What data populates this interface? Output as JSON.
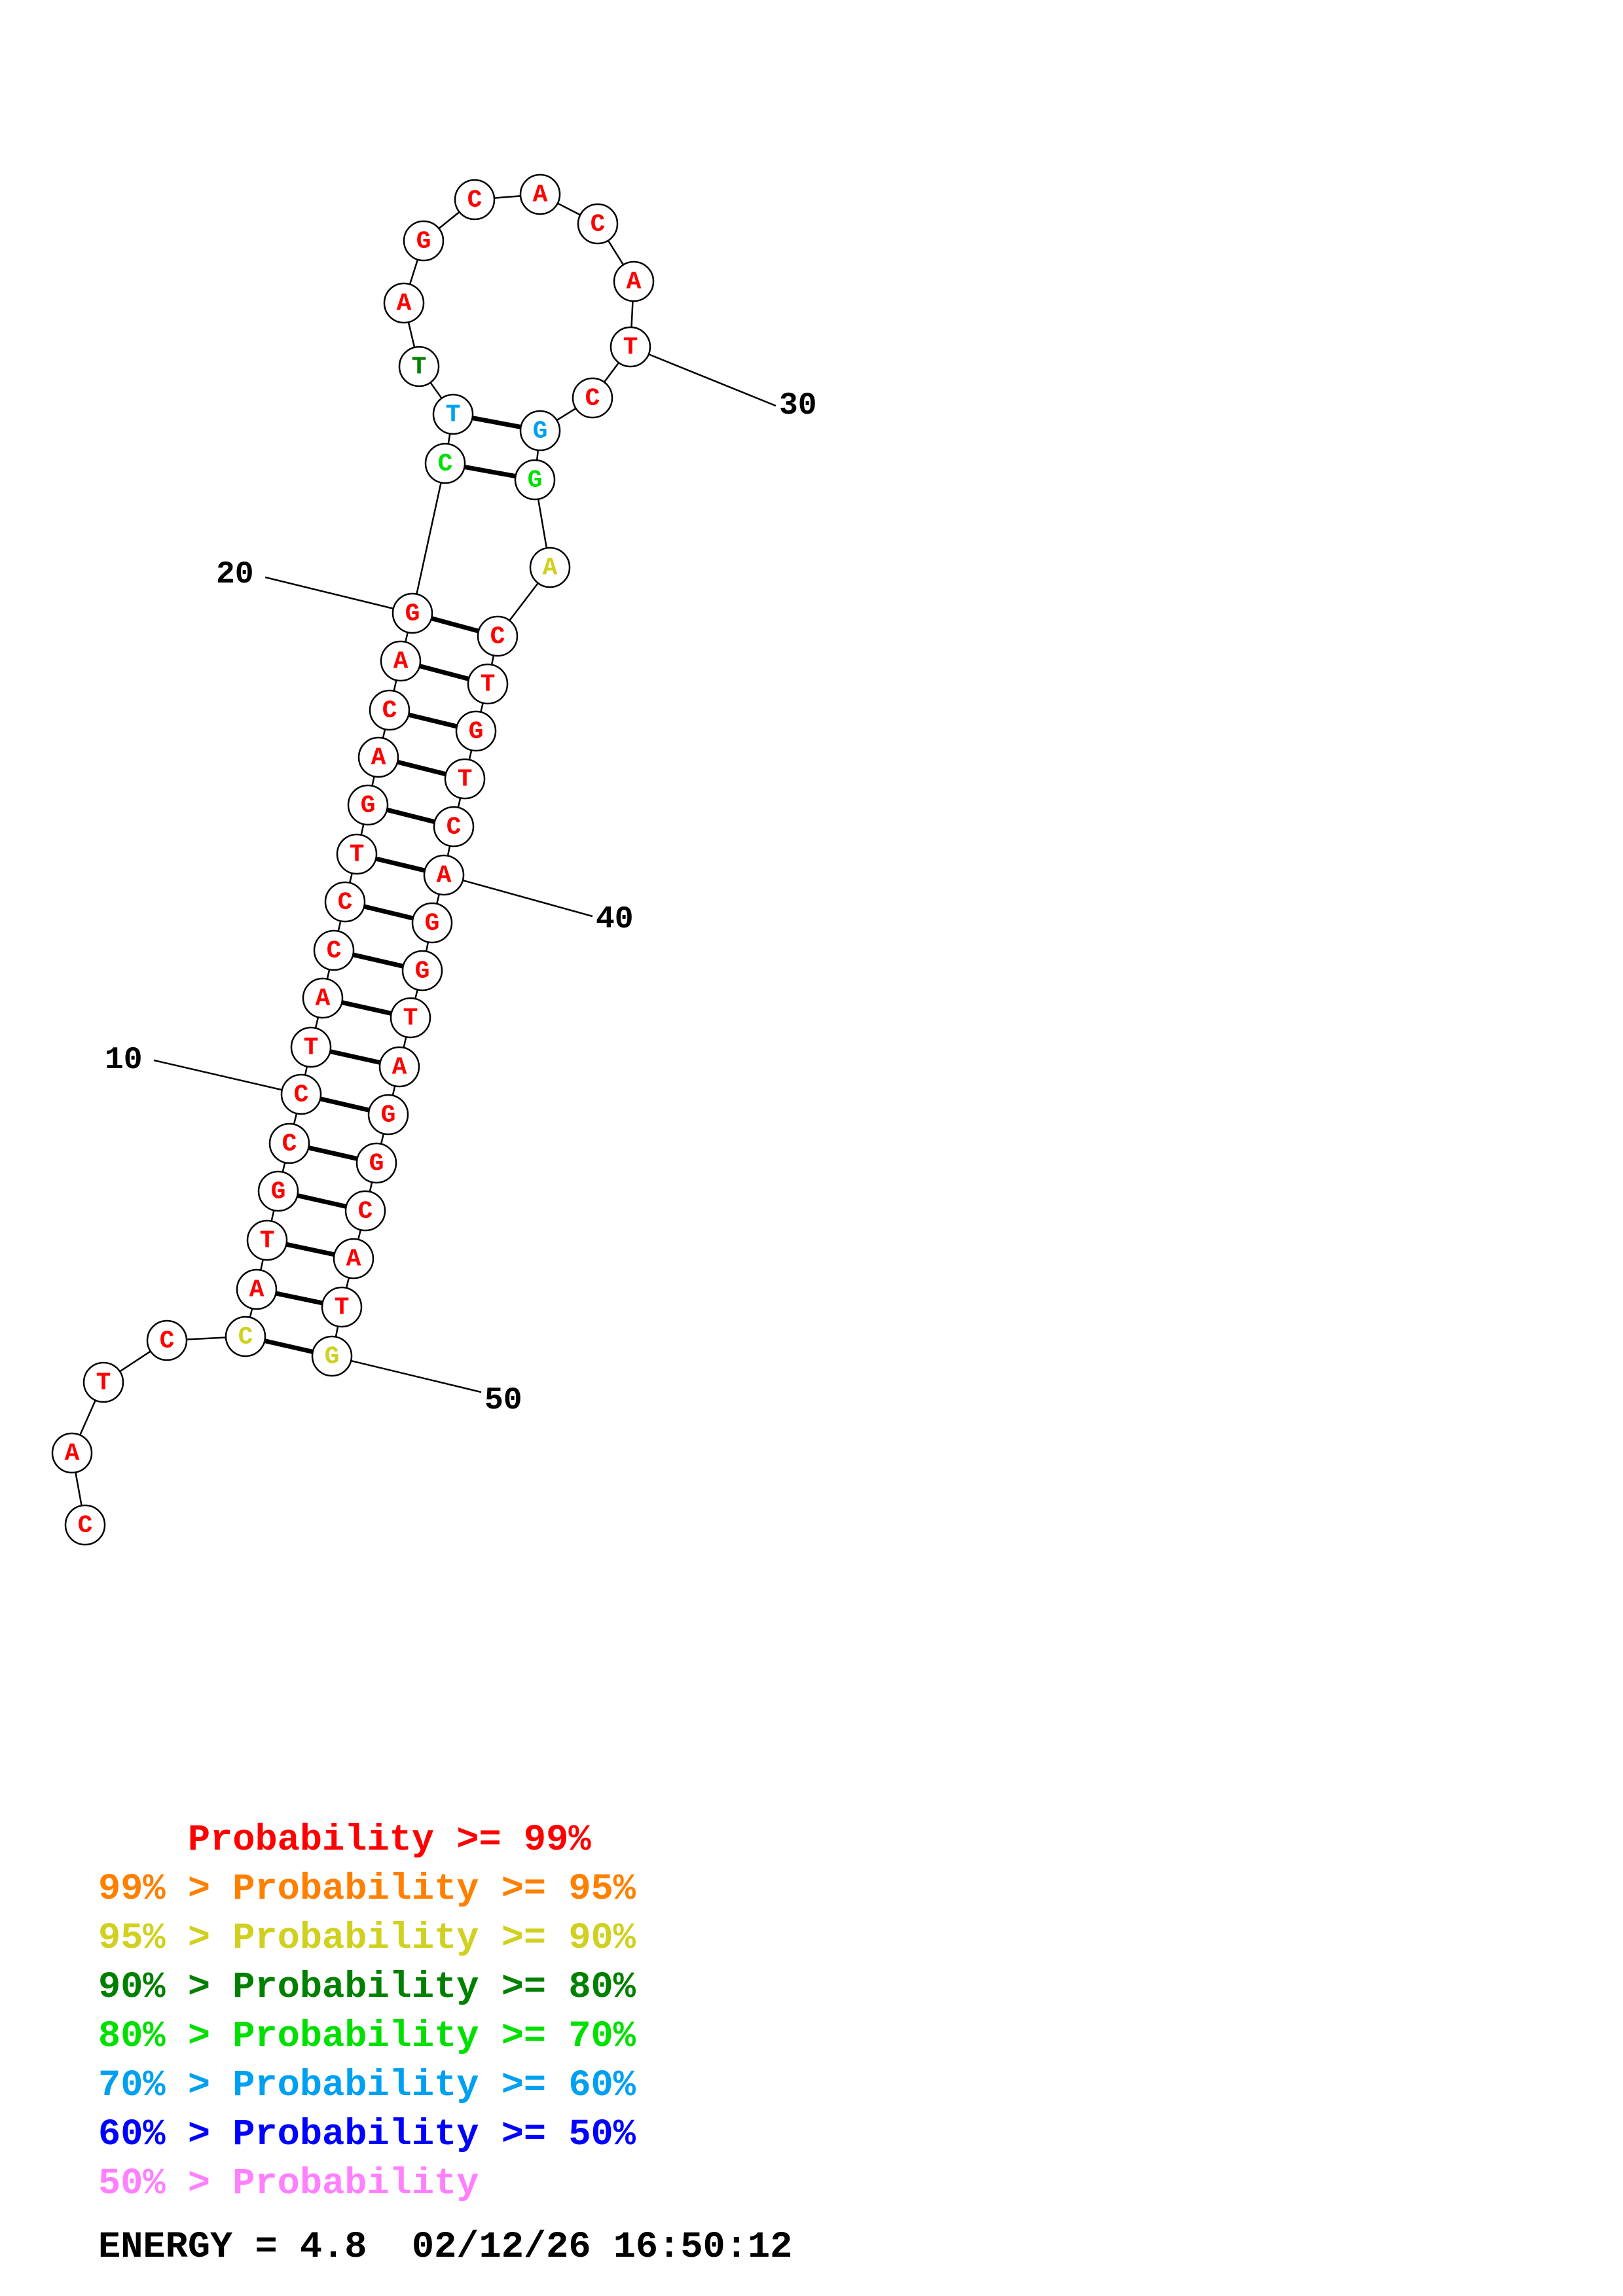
{
  "colors": {
    "p99": "#ff0000",
    "p95": "#ff8000",
    "p90": "#d0d020",
    "p80": "#008000",
    "p70": "#00e000",
    "p60": "#00a0f0",
    "p50": "#0000ff",
    "plow": "#ff80ff"
  },
  "sequence": [
    {
      "i": 1,
      "base": "C",
      "prob": "p99"
    },
    {
      "i": 2,
      "base": "A",
      "prob": "p99"
    },
    {
      "i": 3,
      "base": "T",
      "prob": "p99"
    },
    {
      "i": 4,
      "base": "C",
      "prob": "p99"
    },
    {
      "i": 5,
      "base": "C",
      "prob": "p90"
    },
    {
      "i": 6,
      "base": "A",
      "prob": "p99"
    },
    {
      "i": 7,
      "base": "T",
      "prob": "p99"
    },
    {
      "i": 8,
      "base": "G",
      "prob": "p99"
    },
    {
      "i": 9,
      "base": "C",
      "prob": "p99"
    },
    {
      "i": 10,
      "base": "C",
      "prob": "p99"
    },
    {
      "i": 11,
      "base": "T",
      "prob": "p99"
    },
    {
      "i": 12,
      "base": "A",
      "prob": "p99"
    },
    {
      "i": 13,
      "base": "C",
      "prob": "p99"
    },
    {
      "i": 14,
      "base": "C",
      "prob": "p99"
    },
    {
      "i": 15,
      "base": "T",
      "prob": "p99"
    },
    {
      "i": 16,
      "base": "G",
      "prob": "p99"
    },
    {
      "i": 17,
      "base": "A",
      "prob": "p99"
    },
    {
      "i": 18,
      "base": "C",
      "prob": "p99"
    },
    {
      "i": 19,
      "base": "A",
      "prob": "p99"
    },
    {
      "i": 20,
      "base": "G",
      "prob": "p99"
    },
    {
      "i": 21,
      "base": "C",
      "prob": "p70"
    },
    {
      "i": 22,
      "base": "T",
      "prob": "p60"
    },
    {
      "i": 23,
      "base": "T",
      "prob": "p80"
    },
    {
      "i": 24,
      "base": "A",
      "prob": "p99"
    },
    {
      "i": 25,
      "base": "G",
      "prob": "p99"
    },
    {
      "i": 26,
      "base": "C",
      "prob": "p99"
    },
    {
      "i": 27,
      "base": "A",
      "prob": "p99"
    },
    {
      "i": 28,
      "base": "C",
      "prob": "p99"
    },
    {
      "i": 29,
      "base": "A",
      "prob": "p99"
    },
    {
      "i": 30,
      "base": "T",
      "prob": "p99"
    },
    {
      "i": 31,
      "base": "C",
      "prob": "p99"
    },
    {
      "i": 32,
      "base": "G",
      "prob": "p60"
    },
    {
      "i": 33,
      "base": "G",
      "prob": "p70"
    },
    {
      "i": 34,
      "base": "A",
      "prob": "p90"
    },
    {
      "i": 35,
      "base": "C",
      "prob": "p99"
    },
    {
      "i": 36,
      "base": "T",
      "prob": "p99"
    },
    {
      "i": 37,
      "base": "G",
      "prob": "p99"
    },
    {
      "i": 38,
      "base": "T",
      "prob": "p99"
    },
    {
      "i": 39,
      "base": "C",
      "prob": "p99"
    },
    {
      "i": 40,
      "base": "A",
      "prob": "p99"
    },
    {
      "i": 41,
      "base": "G",
      "prob": "p99"
    },
    {
      "i": 42,
      "base": "G",
      "prob": "p99"
    },
    {
      "i": 43,
      "base": "T",
      "prob": "p99"
    },
    {
      "i": 44,
      "base": "A",
      "prob": "p99"
    },
    {
      "i": 45,
      "base": "G",
      "prob": "p99"
    },
    {
      "i": 46,
      "base": "G",
      "prob": "p99"
    },
    {
      "i": 47,
      "base": "C",
      "prob": "p99"
    },
    {
      "i": 48,
      "base": "A",
      "prob": "p99"
    },
    {
      "i": 49,
      "base": "T",
      "prob": "p99"
    },
    {
      "i": 50,
      "base": "G",
      "prob": "p90"
    }
  ],
  "pairs": [
    [
      5,
      50
    ],
    [
      6,
      49
    ],
    [
      7,
      48
    ],
    [
      8,
      47
    ],
    [
      9,
      46
    ],
    [
      10,
      45
    ],
    [
      11,
      44
    ],
    [
      12,
      43
    ],
    [
      13,
      42
    ],
    [
      14,
      41
    ],
    [
      15,
      40
    ],
    [
      16,
      39
    ],
    [
      17,
      38
    ],
    [
      18,
      37
    ],
    [
      19,
      36
    ],
    [
      20,
      35
    ],
    [
      21,
      33
    ],
    [
      22,
      32
    ]
  ],
  "tick_labels": [
    "10",
    "20",
    "30",
    "40",
    "50"
  ],
  "legend": [
    {
      "prefix": "    ",
      "text": "Probability >= 99%",
      "color": "p99"
    },
    {
      "prefix": "99% > ",
      "text": "Probability >= 95%",
      "color": "p95"
    },
    {
      "prefix": "95% > ",
      "text": "Probability >= 90%",
      "color": "p90"
    },
    {
      "prefix": "90% > ",
      "text": "Probability >= 80%",
      "color": "p80"
    },
    {
      "prefix": "80% > ",
      "text": "Probability >= 70%",
      "color": "p70"
    },
    {
      "prefix": "70% > ",
      "text": "Probability >= 60%",
      "color": "p60"
    },
    {
      "prefix": "60% > ",
      "text": "Probability >= 50%",
      "color": "p50"
    },
    {
      "prefix": "50% > ",
      "text": "Probability",
      "color": "plow"
    }
  ],
  "energy": "ENERGY = 4.8  02/12/26 16:50:12"
}
